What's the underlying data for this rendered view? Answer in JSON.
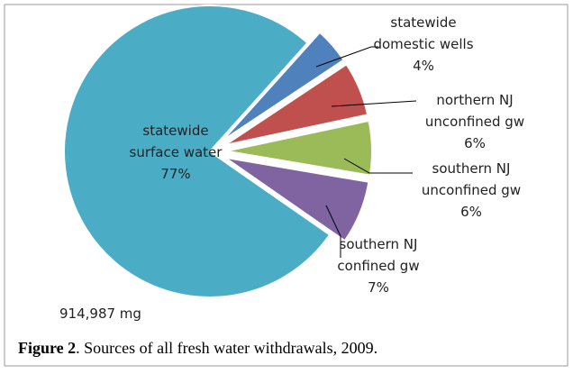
{
  "chart_data": {
    "type": "pie",
    "categories": [
      [
        "statewide",
        "domestic wells"
      ],
      [
        "northern NJ",
        "unconfined gw"
      ],
      [
        "southern NJ",
        "unconfined gw"
      ],
      [
        "southern NJ",
        "confined gw"
      ],
      [
        "statewide",
        "surface water"
      ]
    ],
    "values": [
      4,
      6,
      6,
      7,
      77
    ],
    "value_labels": [
      "4%",
      "6%",
      "6%",
      "7%",
      "77%"
    ],
    "colors": [
      "#4f81bd",
      "#c0504d",
      "#9bbb59",
      "#8064a2",
      "#4bacc6"
    ],
    "total_label": "914,987 mg",
    "figure_label": "Figure 2",
    "caption": ". Sources of all fresh water withdrawals, 2009."
  }
}
